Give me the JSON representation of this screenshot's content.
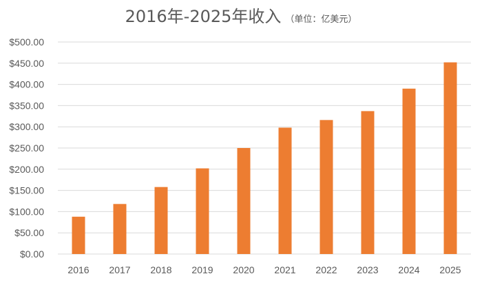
{
  "chart_data": {
    "type": "bar",
    "title": "2016年-2025年收入",
    "subtitle": "（单位：亿美元）",
    "categories": [
      "2016",
      "2017",
      "2018",
      "2019",
      "2020",
      "2021",
      "2022",
      "2023",
      "2024",
      "2025"
    ],
    "series": [
      {
        "values": [
          88,
          118,
          158,
          202,
          250,
          298,
          316,
          337,
          390,
          452
        ]
      }
    ],
    "ylim": [
      0,
      500
    ],
    "y_ticks": [
      "$0.00",
      "$50.00",
      "$100.00",
      "$150.00",
      "$200.00",
      "$250.00",
      "$300.00",
      "$350.00",
      "$400.00",
      "$450.00",
      "$500.00"
    ],
    "xlabel": "",
    "ylabel": "",
    "grid": true,
    "legend": "none",
    "bar_color": "#ED7D31",
    "grid_color": "#D9D9D9"
  }
}
